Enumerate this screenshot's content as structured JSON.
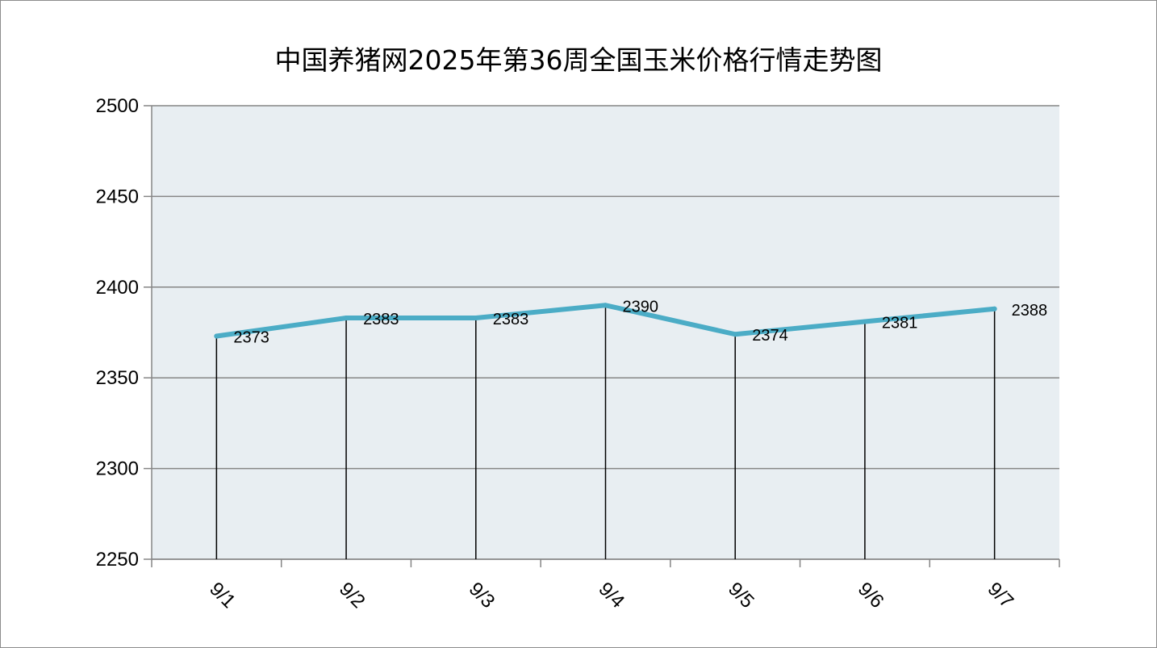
{
  "chart_data": {
    "type": "line",
    "title": "中国养猪网2025年第36周全国玉米价格行情走势图",
    "categories": [
      "9/1",
      "9/2",
      "9/3",
      "9/4",
      "9/5",
      "9/6",
      "9/7"
    ],
    "series": [
      {
        "values": [
          2373,
          2383,
          2383,
          2390,
          2374,
          2381,
          2388
        ]
      }
    ],
    "ylim": [
      2250,
      2500
    ],
    "yticks": [
      2250,
      2300,
      2350,
      2400,
      2450,
      2500
    ],
    "grid": true,
    "drop_lines": true,
    "data_labels": true,
    "colors": {
      "line": "#4BACC6",
      "plot_background": "#E8EEF2",
      "grid": "#868686",
      "drop_line": "#000000"
    }
  }
}
